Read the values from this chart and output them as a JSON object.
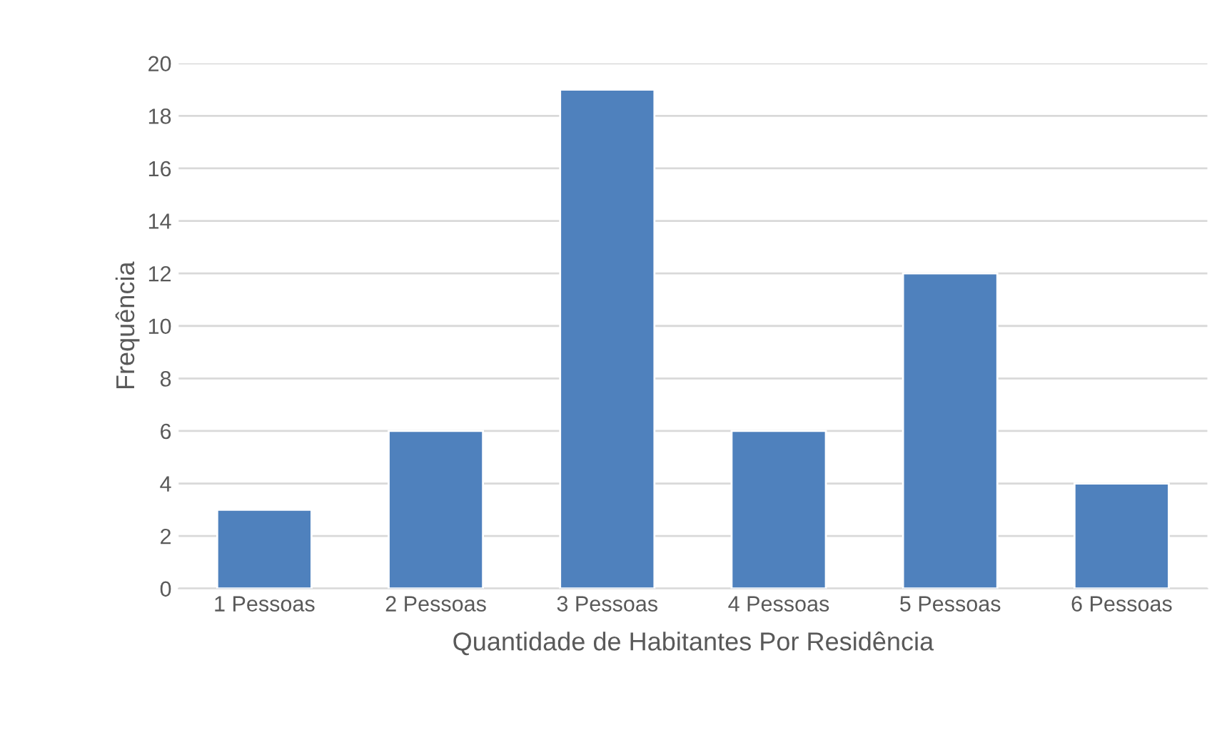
{
  "chart_data": {
    "type": "bar",
    "xlabel": "Quantidade de Habitantes Por Residência",
    "ylabel": "Frequência",
    "categories": [
      "1 Pessoas",
      "2 Pessoas",
      "3 Pessoas",
      "4 Pessoas",
      "5 Pessoas",
      "6 Pessoas"
    ],
    "values": [
      3,
      6,
      19,
      6,
      12,
      4
    ],
    "color": "#4f81bd",
    "ylim": [
      0,
      20
    ],
    "yticks": [
      0,
      2,
      4,
      6,
      8,
      10,
      12,
      14,
      16,
      18,
      20
    ],
    "grid": "y",
    "legend": false
  }
}
